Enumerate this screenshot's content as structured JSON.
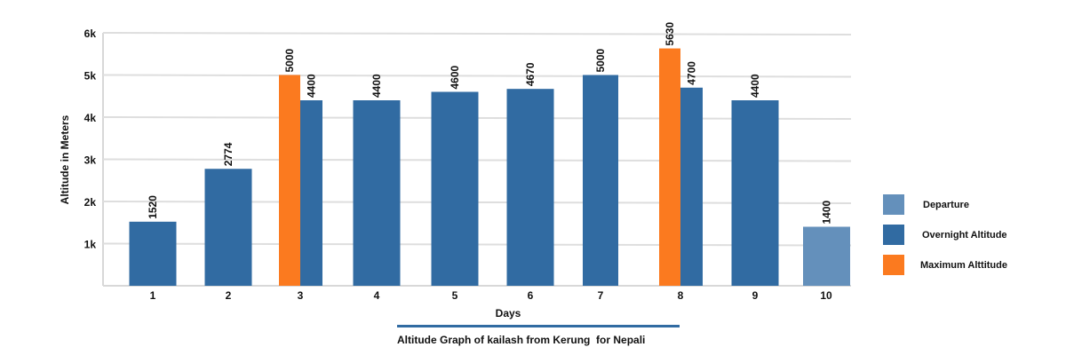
{
  "chart_data": {
    "type": "bar",
    "title": "Altitude Graph of kailash from Kerung  for Nepali",
    "xlabel": "Days",
    "ylabel": "Altitude in Meters",
    "ylim": [
      0,
      6000
    ],
    "yticks": [
      {
        "v": 1000,
        "label": "1k"
      },
      {
        "v": 2000,
        "label": "2k"
      },
      {
        "v": 3000,
        "label": "3k"
      },
      {
        "v": 4000,
        "label": "4k"
      },
      {
        "v": 5000,
        "label": "5k"
      },
      {
        "v": 6000,
        "label": "6k"
      }
    ],
    "grid": true,
    "legend_position": "right",
    "categories": [
      "1",
      "2",
      "3",
      "4",
      "5",
      "6",
      "7",
      "8",
      "9",
      "10"
    ],
    "series": [
      {
        "name": "Departure",
        "color": "#6490bb",
        "values": [
          null,
          null,
          null,
          null,
          null,
          null,
          null,
          null,
          null,
          1400
        ]
      },
      {
        "name": "Overnight Altitude",
        "color": "#316ba2",
        "values": [
          1520,
          2774,
          4400,
          4400,
          4600,
          4670,
          5000,
          4700,
          4400,
          null
        ]
      },
      {
        "name": "Maximum Alttitude",
        "color": "#fb7a1f",
        "values": [
          null,
          null,
          5000,
          null,
          null,
          null,
          null,
          5630,
          null,
          null
        ]
      }
    ]
  }
}
